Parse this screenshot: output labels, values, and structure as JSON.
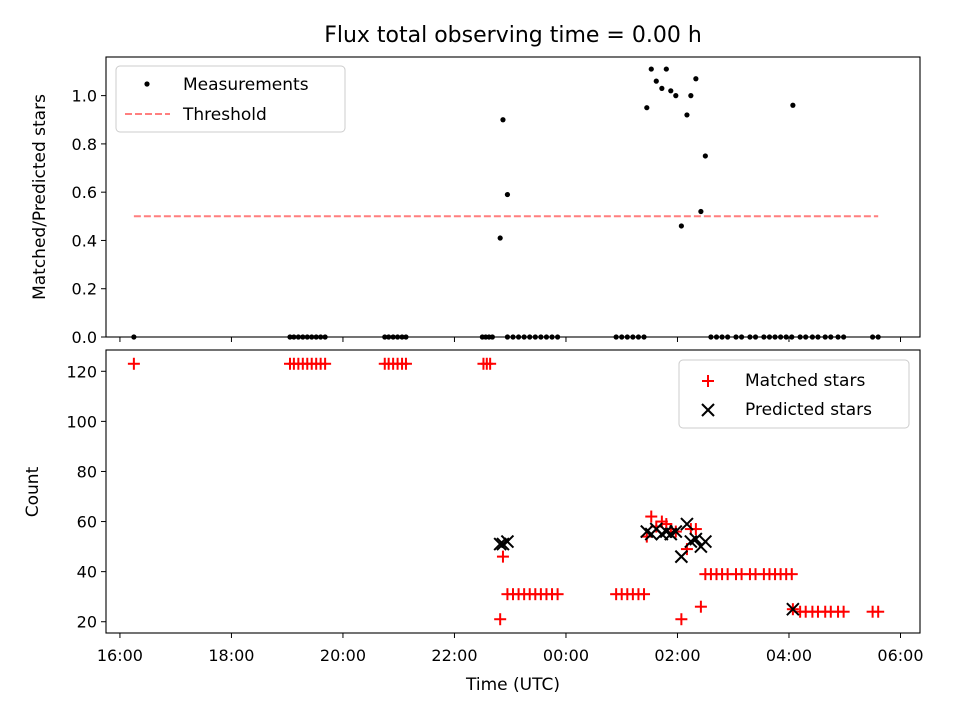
{
  "title": "Flux total observing time = 0.00 h",
  "colors": {
    "measurement": "#000000",
    "threshold": "#ff7f7f",
    "matched": "#ff0000",
    "predicted": "#000000"
  },
  "chart_data": [
    {
      "type": "scatter",
      "panel": "top",
      "xlabel": "",
      "ylabel": "Matched/Predicted stars",
      "xlim": [
        15.75,
        30.35
      ],
      "ylim": [
        0.0,
        1.16
      ],
      "yticks": [
        0.0,
        0.2,
        0.4,
        0.6,
        0.8,
        1.0
      ],
      "ytick_labels": [
        "0.0",
        "0.2",
        "0.4",
        "0.6",
        "0.8",
        "1.0"
      ],
      "legend": {
        "position": "top-left",
        "entries": [
          "Measurements",
          "Threshold"
        ]
      },
      "threshold": {
        "name": "Threshold",
        "value": 0.5,
        "x": [
          16.25,
          29.6
        ],
        "style": "dashed"
      },
      "series": [
        {
          "name": "Measurements",
          "points": [
            [
              16.25,
              0.0
            ],
            [
              19.05,
              0.0
            ],
            [
              19.12,
              0.0
            ],
            [
              19.2,
              0.0
            ],
            [
              19.28,
              0.0
            ],
            [
              19.36,
              0.0
            ],
            [
              19.44,
              0.0
            ],
            [
              19.52,
              0.0
            ],
            [
              19.6,
              0.0
            ],
            [
              19.68,
              0.0
            ],
            [
              20.75,
              0.0
            ],
            [
              20.82,
              0.0
            ],
            [
              20.9,
              0.0
            ],
            [
              20.98,
              0.0
            ],
            [
              21.06,
              0.0
            ],
            [
              21.13,
              0.0
            ],
            [
              22.5,
              0.0
            ],
            [
              22.56,
              0.0
            ],
            [
              22.62,
              0.0
            ],
            [
              22.68,
              0.0
            ],
            [
              22.82,
              0.41
            ],
            [
              22.87,
              0.9
            ],
            [
              22.95,
              0.59
            ],
            [
              22.95,
              0.0
            ],
            [
              23.05,
              0.0
            ],
            [
              23.15,
              0.0
            ],
            [
              23.25,
              0.0
            ],
            [
              23.35,
              0.0
            ],
            [
              23.45,
              0.0
            ],
            [
              23.55,
              0.0
            ],
            [
              23.65,
              0.0
            ],
            [
              23.75,
              0.0
            ],
            [
              23.85,
              0.0
            ],
            [
              24.9,
              0.0
            ],
            [
              25.0,
              0.0
            ],
            [
              25.1,
              0.0
            ],
            [
              25.2,
              0.0
            ],
            [
              25.3,
              0.0
            ],
            [
              25.4,
              0.0
            ],
            [
              25.45,
              0.95
            ],
            [
              25.53,
              1.11
            ],
            [
              25.62,
              1.06
            ],
            [
              25.72,
              1.03
            ],
            [
              25.8,
              1.11
            ],
            [
              25.88,
              1.02
            ],
            [
              25.97,
              1.0
            ],
            [
              26.07,
              0.46
            ],
            [
              26.17,
              0.92
            ],
            [
              26.24,
              1.0
            ],
            [
              26.33,
              1.07
            ],
            [
              26.42,
              0.52
            ],
            [
              26.5,
              0.75
            ],
            [
              26.6,
              0.0
            ],
            [
              26.7,
              0.0
            ],
            [
              26.8,
              0.0
            ],
            [
              26.9,
              0.0
            ],
            [
              27.05,
              0.0
            ],
            [
              27.15,
              0.0
            ],
            [
              27.3,
              0.0
            ],
            [
              27.4,
              0.0
            ],
            [
              27.55,
              0.0
            ],
            [
              27.65,
              0.0
            ],
            [
              27.75,
              0.0
            ],
            [
              27.85,
              0.0
            ],
            [
              27.95,
              0.0
            ],
            [
              28.05,
              0.0
            ],
            [
              28.07,
              0.96
            ],
            [
              28.2,
              0.0
            ],
            [
              28.3,
              0.0
            ],
            [
              28.42,
              0.0
            ],
            [
              28.52,
              0.0
            ],
            [
              28.65,
              0.0
            ],
            [
              28.75,
              0.0
            ],
            [
              28.88,
              0.0
            ],
            [
              28.98,
              0.0
            ],
            [
              29.5,
              0.0
            ],
            [
              29.6,
              0.0
            ]
          ]
        }
      ]
    },
    {
      "type": "scatter",
      "panel": "bottom",
      "xlabel": "Time (UTC)",
      "ylabel": "Count",
      "xlim": [
        15.75,
        30.35
      ],
      "ylim": [
        15.5,
        128.5
      ],
      "xticks": [
        16,
        18,
        20,
        22,
        24,
        26,
        28,
        30
      ],
      "xtick_labels": [
        "16:00",
        "18:00",
        "20:00",
        "22:00",
        "00:00",
        "02:00",
        "04:00",
        "06:00"
      ],
      "yticks": [
        20,
        40,
        60,
        80,
        100,
        120
      ],
      "ytick_labels": [
        "20",
        "40",
        "60",
        "80",
        "100",
        "120"
      ],
      "legend": {
        "position": "top-right",
        "entries": [
          "Matched stars",
          "Predicted stars"
        ]
      },
      "series": [
        {
          "name": "Matched stars",
          "marker": "plus",
          "points": [
            [
              16.25,
              123
            ],
            [
              19.05,
              123
            ],
            [
              19.12,
              123
            ],
            [
              19.2,
              123
            ],
            [
              19.28,
              123
            ],
            [
              19.36,
              123
            ],
            [
              19.44,
              123
            ],
            [
              19.52,
              123
            ],
            [
              19.6,
              123
            ],
            [
              19.68,
              123
            ],
            [
              20.75,
              123
            ],
            [
              20.82,
              123
            ],
            [
              20.9,
              123
            ],
            [
              20.98,
              123
            ],
            [
              21.06,
              123
            ],
            [
              21.13,
              123
            ],
            [
              22.52,
              123
            ],
            [
              22.58,
              123
            ],
            [
              22.64,
              123
            ],
            [
              22.82,
              21
            ],
            [
              22.87,
              46
            ],
            [
              22.95,
              31
            ],
            [
              23.05,
              31
            ],
            [
              23.15,
              31
            ],
            [
              23.25,
              31
            ],
            [
              23.35,
              31
            ],
            [
              23.45,
              31
            ],
            [
              23.55,
              31
            ],
            [
              23.65,
              31
            ],
            [
              23.75,
              31
            ],
            [
              23.85,
              31
            ],
            [
              24.9,
              31
            ],
            [
              25.0,
              31
            ],
            [
              25.1,
              31
            ],
            [
              25.2,
              31
            ],
            [
              25.3,
              31
            ],
            [
              25.4,
              31
            ],
            [
              25.45,
              54
            ],
            [
              25.53,
              62
            ],
            [
              25.62,
              58
            ],
            [
              25.72,
              60
            ],
            [
              25.8,
              59
            ],
            [
              25.88,
              57
            ],
            [
              25.97,
              56
            ],
            [
              26.07,
              21
            ],
            [
              26.17,
              49
            ],
            [
              26.24,
              57
            ],
            [
              26.33,
              57
            ],
            [
              26.42,
              26
            ],
            [
              26.5,
              39
            ],
            [
              26.6,
              39
            ],
            [
              26.7,
              39
            ],
            [
              26.8,
              39
            ],
            [
              26.9,
              39
            ],
            [
              27.05,
              39
            ],
            [
              27.15,
              39
            ],
            [
              27.3,
              39
            ],
            [
              27.4,
              39
            ],
            [
              27.55,
              39
            ],
            [
              27.65,
              39
            ],
            [
              27.75,
              39
            ],
            [
              27.85,
              39
            ],
            [
              27.95,
              39
            ],
            [
              28.05,
              39
            ],
            [
              28.07,
              25
            ],
            [
              28.2,
              24
            ],
            [
              28.3,
              24
            ],
            [
              28.42,
              24
            ],
            [
              28.52,
              24
            ],
            [
              28.65,
              24
            ],
            [
              28.75,
              24
            ],
            [
              28.88,
              24
            ],
            [
              28.98,
              24
            ],
            [
              29.5,
              24
            ],
            [
              29.6,
              24
            ]
          ]
        },
        {
          "name": "Predicted stars",
          "marker": "x",
          "points": [
            [
              22.82,
              51
            ],
            [
              22.87,
              51
            ],
            [
              22.95,
              52
            ],
            [
              25.45,
              56
            ],
            [
              25.53,
              55
            ],
            [
              25.62,
              57
            ],
            [
              25.72,
              55
            ],
            [
              25.8,
              56
            ],
            [
              25.88,
              55
            ],
            [
              25.97,
              56
            ],
            [
              26.07,
              46
            ],
            [
              26.17,
              59
            ],
            [
              26.24,
              52
            ],
            [
              26.33,
              53
            ],
            [
              26.42,
              50
            ],
            [
              26.5,
              52
            ],
            [
              28.07,
              25
            ]
          ]
        }
      ]
    }
  ]
}
